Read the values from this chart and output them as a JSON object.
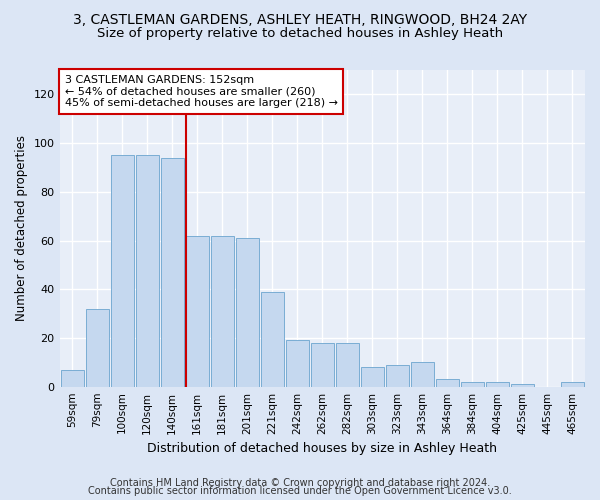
{
  "title": "3, CASTLEMAN GARDENS, ASHLEY HEATH, RINGWOOD, BH24 2AY",
  "subtitle": "Size of property relative to detached houses in Ashley Heath",
  "xlabel": "Distribution of detached houses by size in Ashley Heath",
  "ylabel": "Number of detached properties",
  "categories": [
    "59sqm",
    "79sqm",
    "100sqm",
    "120sqm",
    "140sqm",
    "161sqm",
    "181sqm",
    "201sqm",
    "221sqm",
    "242sqm",
    "262sqm",
    "282sqm",
    "303sqm",
    "323sqm",
    "343sqm",
    "364sqm",
    "384sqm",
    "404sqm",
    "425sqm",
    "445sqm",
    "465sqm"
  ],
  "values": [
    7,
    32,
    95,
    95,
    94,
    62,
    62,
    61,
    39,
    19,
    18,
    18,
    8,
    9,
    10,
    3,
    2,
    2,
    1,
    0,
    2
  ],
  "bar_color": "#c5d8ef",
  "bar_edge_color": "#7aadd4",
  "bg_color": "#e8eef8",
  "grid_color": "#ffffff",
  "annotation_box_text": "3 CASTLEMAN GARDENS: 152sqm\n← 54% of detached houses are smaller (260)\n45% of semi-detached houses are larger (218) →",
  "vline_color": "#cc0000",
  "ylim": [
    0,
    130
  ],
  "yticks": [
    0,
    20,
    40,
    60,
    80,
    100,
    120
  ],
  "fig_bg_color": "#dce6f5",
  "footer1": "Contains HM Land Registry data © Crown copyright and database right 2024.",
  "footer2": "Contains public sector information licensed under the Open Government Licence v3.0.",
  "title_fontsize": 10,
  "subtitle_fontsize": 9.5,
  "xlabel_fontsize": 9,
  "ylabel_fontsize": 8.5,
  "footer_fontsize": 7,
  "annot_fontsize": 8,
  "tick_fontsize": 8
}
